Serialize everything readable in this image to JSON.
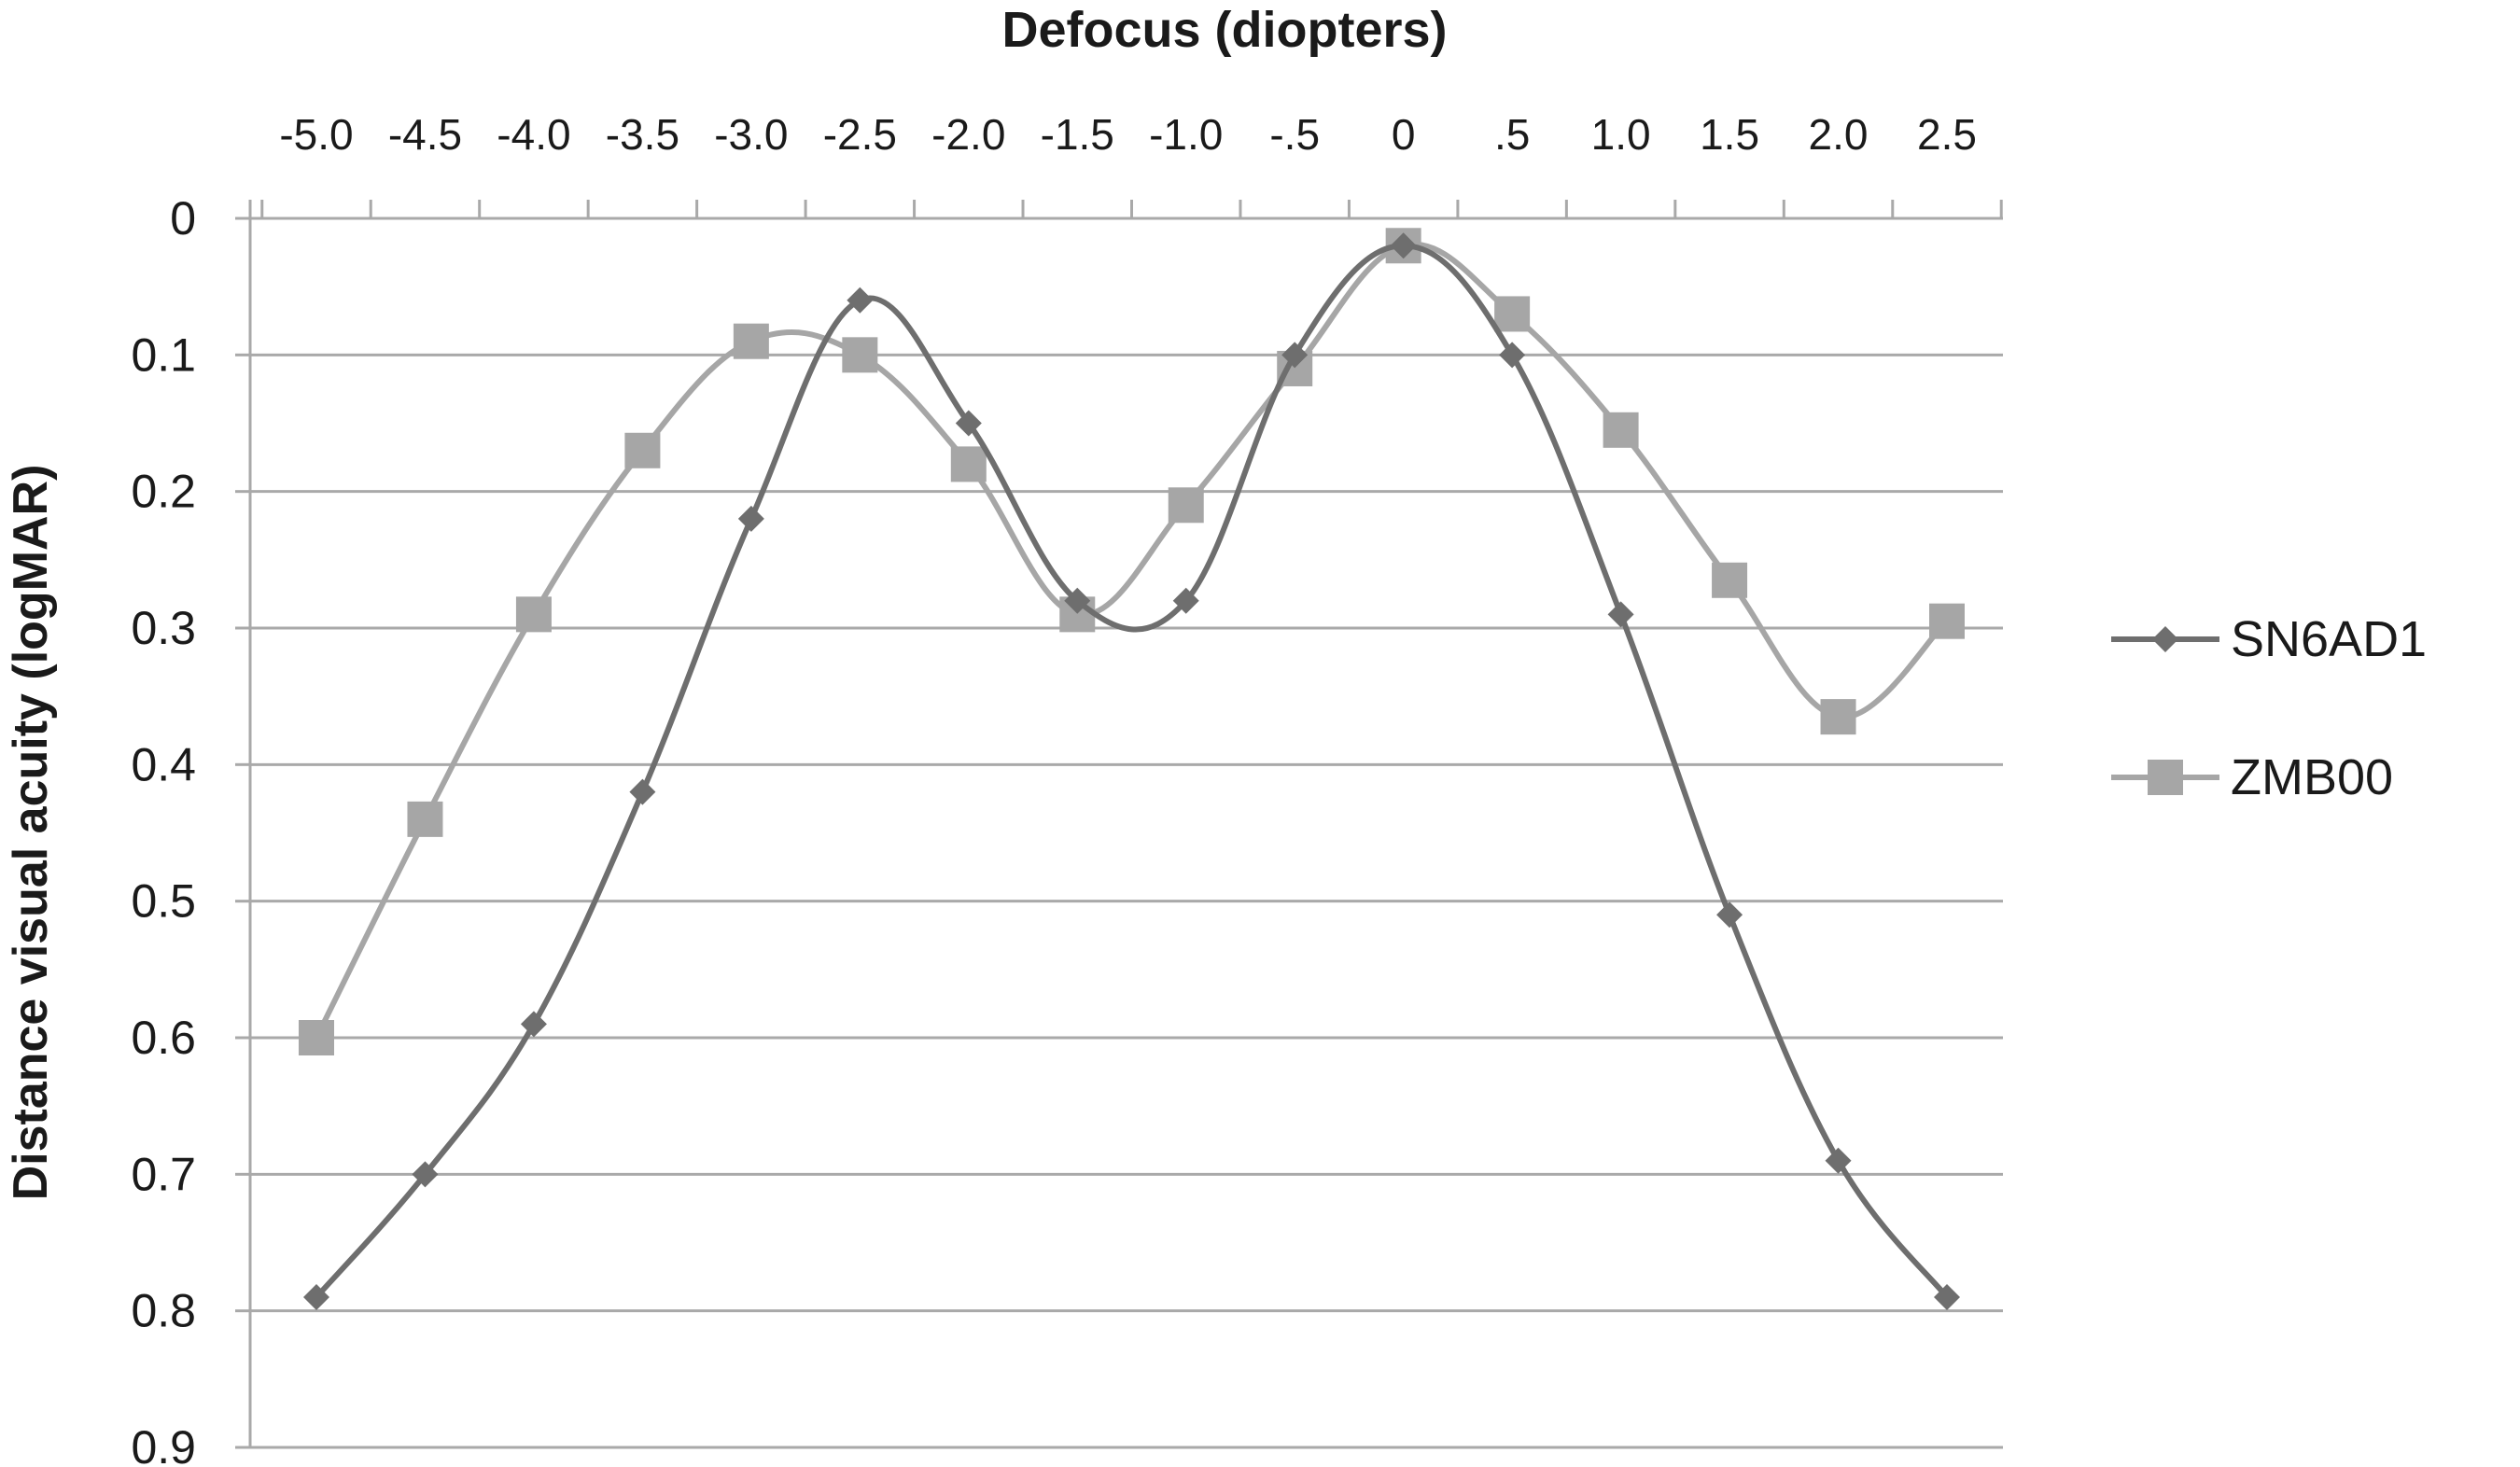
{
  "chart_data": {
    "type": "line",
    "title": "",
    "xlabel": "Defocus (diopters)",
    "ylabel": "Distance visual acuity (logMAR)",
    "x_axis_position": "top",
    "y_axis_inverted": true,
    "categories": [
      "-5.0",
      "-4.5",
      "-4.0",
      "-3.5",
      "-3.0",
      "-2.5",
      "-2.0",
      "-1.5",
      "-1.0",
      "-.5",
      "0",
      ".5",
      "1.0",
      "1.5",
      "2.0",
      "2.5"
    ],
    "x": [
      -5.0,
      -4.5,
      -4.0,
      -3.5,
      -3.0,
      -2.5,
      -2.0,
      -1.5,
      -1.0,
      -0.5,
      0,
      0.5,
      1.0,
      1.5,
      2.0,
      2.5
    ],
    "y_ticks": [
      "0",
      "0.1",
      "0.2",
      "0.3",
      "0.4",
      "0.5",
      "0.6",
      "0.7",
      "0.8",
      "0.9"
    ],
    "ylim": [
      0,
      0.9
    ],
    "grid": "horizontal",
    "legend_position": "right",
    "series": [
      {
        "name": "SN6AD1",
        "marker": "diamond",
        "color": "#6e6e6e",
        "values": [
          0.79,
          0.7,
          0.59,
          0.42,
          0.22,
          0.06,
          0.15,
          0.28,
          0.28,
          0.1,
          0.02,
          0.1,
          0.29,
          0.51,
          0.69,
          0.79
        ]
      },
      {
        "name": "ZMB00",
        "marker": "square",
        "color": "#a6a6a6",
        "values": [
          0.6,
          0.44,
          0.29,
          0.17,
          0.09,
          0.1,
          0.18,
          0.29,
          0.21,
          0.11,
          0.02,
          0.07,
          0.155,
          0.265,
          0.365,
          0.295
        ]
      }
    ]
  }
}
